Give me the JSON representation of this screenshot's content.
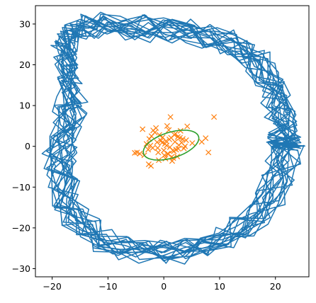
{
  "chart_data": {
    "type": "scatter",
    "title": "",
    "xlabel": "",
    "ylabel": "",
    "xlim": [
      -23,
      26
    ],
    "ylim": [
      -32,
      34.5
    ],
    "x_ticks": [
      -20,
      -10,
      0,
      10,
      20
    ],
    "y_ticks": [
      -30,
      -20,
      -10,
      0,
      10,
      20,
      30
    ],
    "x_tick_labels": [
      "−20",
      "−10",
      "0",
      "10",
      "20"
    ],
    "y_tick_labels": [
      "−30",
      "−20",
      "−10",
      "0",
      "10",
      "20",
      "30"
    ],
    "grid": false,
    "legend": "none",
    "colors": {
      "ring": "#1f77b4",
      "points": "#ff7f0e",
      "ellipse": "#2ca02c"
    },
    "series": [
      {
        "kind": "line",
        "color": "#1f77b4",
        "description_values": {
          "center": [
            1.5,
            1.5
          ],
          "radius_x_range": [
            14,
            24
          ],
          "radius_y_range": [
            23,
            31
          ],
          "loops": 18
        },
        "x": [
          22.0,
          21.4,
          20.5,
          18.9,
          16.8,
          13.9,
          11.0,
          7.5,
          3.8,
          0.0,
          -3.8,
          -7.7,
          -10.8,
          -13.6,
          -15.8,
          -17.4,
          -18.3,
          -18.7,
          -18.4,
          -17.8,
          -17.1,
          -16.6,
          -16.4,
          -16.6,
          -17.0,
          -17.5,
          -17.8,
          -17.6,
          -16.8,
          -15.3,
          -13.1,
          -10.2,
          -6.8,
          -3.0,
          0.8,
          4.6,
          8.2,
          11.6,
          14.5,
          16.9,
          18.7,
          19.9,
          20.5,
          20.7,
          20.7,
          20.9,
          21.3,
          21.8,
          22.0
        ],
        "y": [
          0.0,
          -4.0,
          -8.0,
          -12.5,
          -16.7,
          -20.3,
          -22.9,
          -24.6,
          -25.6,
          -26.0,
          -25.8,
          -24.8,
          -23.0,
          -20.4,
          -17.2,
          -13.5,
          -9.5,
          -5.3,
          -1.5,
          2.0,
          5.2,
          8.3,
          11.5,
          14.8,
          18.0,
          21.0,
          23.6,
          25.7,
          27.3,
          28.5,
          29.2,
          29.5,
          29.4,
          29.0,
          28.6,
          28.0,
          27.0,
          25.5,
          23.3,
          20.7,
          17.7,
          14.4,
          11.0,
          7.8,
          5.0,
          2.8,
          1.4,
          0.5,
          0.0
        ]
      },
      {
        "kind": "scatter",
        "marker": "x",
        "color": "#ff7f0e",
        "x": [
          0.5,
          -1.2,
          1.8,
          2.5,
          -2.0,
          3.2,
          0.1,
          -0.8,
          1.0,
          2.2,
          -3.1,
          4.0,
          0.7,
          -1.6,
          2.9,
          1.4,
          -0.3,
          3.6,
          -2.6,
          0.9,
          1.9,
          -1.0,
          2.7,
          0.3,
          -2.2,
          1.1,
          3.0,
          -0.5,
          0.6,
          2.0,
          -3.5,
          1.6,
          -4.8,
          0.2,
          4.2,
          -1.9,
          2.4,
          -0.9,
          1.3,
          3.4,
          -2.8,
          0.8,
          5.1,
          -1.4,
          1.7,
          -0.2,
          2.6,
          -3.8,
          0.4,
          1.5,
          -2.4,
          3.8,
          0.0,
          2.1,
          -1.1,
          9.0,
          7.5,
          8.0,
          6.8,
          1.2,
          -4.3,
          -5.2,
          -2.3,
          -2.7
        ],
        "y": [
          0.2,
          1.0,
          -1.2,
          2.3,
          -0.4,
          0.9,
          -2.2,
          2.8,
          1.7,
          -0.8,
          0.6,
          1.5,
          -1.8,
          3.4,
          2.1,
          -2.6,
          0.9,
          -0.5,
          1.8,
          4.0,
          2.8,
          -1.5,
          0.3,
          -3.0,
          2.5,
          -0.2,
          3.8,
          1.4,
          5.0,
          1.1,
          -2.2,
          -1.0,
          -1.5,
          0.6,
          4.9,
          3.9,
          -2.5,
          -3.4,
          2.1,
          1.8,
          -0.8,
          -1.9,
          0.8,
          4.5,
          -2.9,
          2.2,
          -0.6,
          4.2,
          1.3,
          -3.6,
          0.2,
          0.0,
          -1.0,
          3.1,
          -0.4,
          7.2,
          2.0,
          -1.5,
          1.1,
          7.2,
          -1.8,
          -1.6,
          -4.8,
          -4.4
        ]
      },
      {
        "kind": "ellipse",
        "color": "#2ca02c",
        "center": [
          1.3,
          0.3
        ],
        "semi_axes": [
          5.4,
          3.0
        ],
        "angle_deg": 28
      }
    ]
  }
}
